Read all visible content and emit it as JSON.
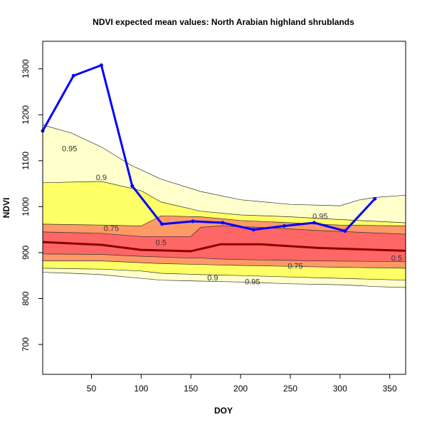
{
  "chart_data": {
    "type": "line",
    "title": "NDVI expected mean values: North Arabian highland shrublands",
    "xlabel": "DOY",
    "ylabel": "NDVI",
    "xlim": [
      1,
      366
    ],
    "ylim": [
      635,
      1360
    ],
    "x_ticks": [
      50,
      100,
      150,
      200,
      250,
      300,
      350
    ],
    "y_ticks": [
      700,
      800,
      900,
      1000,
      1100,
      1200,
      1300
    ],
    "series": [
      {
        "color": "#0000ff",
        "x": [
          1,
          32,
          60,
          91,
          121,
          152,
          182,
          213,
          244,
          274,
          305,
          335
        ],
        "y": [
          1165,
          1285,
          1308,
          1045,
          962,
          968,
          965,
          950,
          958,
          965,
          947,
          1017
        ]
      }
    ],
    "median_line": {
      "color": "#8b0000",
      "x": [
        1,
        60,
        100,
        150,
        180,
        220,
        280,
        366
      ],
      "y": [
        923,
        917,
        906,
        903,
        918,
        918,
        910,
        904
      ]
    },
    "bands": [
      {
        "level": 0.95,
        "fill": "#ffffcc",
        "x": [
          1,
          30,
          60,
          90,
          120,
          160,
          200,
          250,
          300,
          320,
          335,
          366
        ],
        "upper": [
          1178,
          1160,
          1130,
          1090,
          1060,
          1033,
          1015,
          1005,
          1002,
          1015,
          1020,
          1025
        ],
        "lower": [
          857,
          855,
          852,
          846,
          840,
          838,
          836,
          832,
          830,
          828,
          826,
          824
        ]
      },
      {
        "level": 0.9,
        "fill": "#ffff66",
        "x": [
          1,
          60,
          100,
          120,
          160,
          200,
          250,
          300,
          366
        ],
        "upper": [
          1052,
          1055,
          1035,
          1010,
          990,
          982,
          978,
          972,
          965
        ],
        "lower": [
          866,
          864,
          860,
          855,
          852,
          850,
          847,
          844,
          840
        ]
      },
      {
        "level": 0.75,
        "fill": "#ff9966",
        "x": [
          1,
          60,
          100,
          120,
          160,
          200,
          250,
          300,
          366
        ],
        "upper": [
          962,
          960,
          958,
          980,
          978,
          970,
          965,
          960,
          958
        ],
        "lower": [
          882,
          882,
          878,
          876,
          874,
          872,
          870,
          868,
          866
        ]
      },
      {
        "level": 0.5,
        "fill": "#ff6666",
        "x": [
          1,
          60,
          100,
          150,
          160,
          180,
          220,
          280,
          366
        ],
        "upper": [
          945,
          942,
          935,
          935,
          955,
          958,
          955,
          948,
          940
        ],
        "lower": [
          897,
          896,
          892,
          888,
          888,
          886,
          884,
          882,
          880
        ]
      }
    ],
    "contour_labels": [
      {
        "text": "0.95",
        "x": 28,
        "y": 1127
      },
      {
        "text": "0.9",
        "x": 60,
        "y": 1064
      },
      {
        "text": "0.75",
        "x": 70,
        "y": 953
      },
      {
        "text": "0.5",
        "x": 120,
        "y": 922
      },
      {
        "text": "0.95",
        "x": 280,
        "y": 980
      },
      {
        "text": "0.75",
        "x": 255,
        "y": 871
      },
      {
        "text": "0.5",
        "x": 357,
        "y": 888
      },
      {
        "text": "0.9",
        "x": 172,
        "y": 846
      },
      {
        "text": "0.95",
        "x": 212,
        "y": 837
      }
    ]
  }
}
